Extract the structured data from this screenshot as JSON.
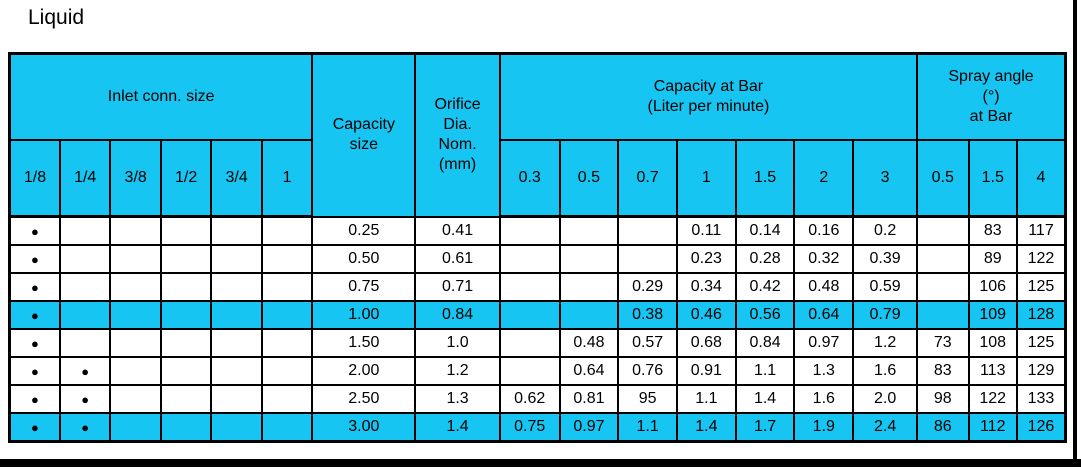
{
  "title": "Liquid",
  "colors": {
    "header_cyan": "#16c5f2",
    "highlight_cyan": "#16c5f2",
    "border_black": "#000000",
    "background": "#ffffff"
  },
  "table": {
    "inlet_group_label": "Inlet conn. size",
    "inlet_sizes": [
      "1/8",
      "1/4",
      "3/8",
      "1/2",
      "3/4",
      "1"
    ],
    "capacity_size_label": "Capacity\nsize",
    "orifice_label": "Orifice\nDia.\nNom.\n(mm)",
    "capacity_group_label": "Capacity at Bar\n(Liter per minute)",
    "capacity_bars": [
      "0.3",
      "0.5",
      "0.7",
      "1",
      "1.5",
      "2",
      "3"
    ],
    "spray_group_label": "Spray angle\n(°)\nat Bar",
    "spray_bars": [
      "0.5",
      "1.5",
      "4"
    ],
    "dot_glyph": "●",
    "rows": [
      {
        "highlight": false,
        "cells": [
          "●",
          "",
          "",
          "",
          "",
          "",
          "0.25",
          "0.41",
          "",
          "",
          "",
          "0.11",
          "0.14",
          "0.16",
          "0.2",
          "",
          "83",
          "117"
        ]
      },
      {
        "highlight": false,
        "cells": [
          "●",
          "",
          "",
          "",
          "",
          "",
          "0.50",
          "0.61",
          "",
          "",
          "",
          "0.23",
          "0.28",
          "0.32",
          "0.39",
          "",
          "89",
          "122"
        ]
      },
      {
        "highlight": false,
        "cells": [
          "●",
          "",
          "",
          "",
          "",
          "",
          "0.75",
          "0.71",
          "",
          "",
          "0.29",
          "0.34",
          "0.42",
          "0.48",
          "0.59",
          "",
          "106",
          "125"
        ]
      },
      {
        "highlight": true,
        "cells": [
          "●",
          "",
          "",
          "",
          "",
          "",
          "1.00",
          "0.84",
          "",
          "",
          "0.38",
          "0.46",
          "0.56",
          "0.64",
          "0.79",
          "",
          "109",
          "128"
        ]
      },
      {
        "highlight": false,
        "cells": [
          "●",
          "",
          "",
          "",
          "",
          "",
          "1.50",
          "1.0",
          "",
          "0.48",
          "0.57",
          "0.68",
          "0.84",
          "0.97",
          "1.2",
          "73",
          "108",
          "125"
        ]
      },
      {
        "highlight": false,
        "cells": [
          "●",
          "●",
          "",
          "",
          "",
          "",
          "2.00",
          "1.2",
          "",
          "0.64",
          "0.76",
          "0.91",
          "1.1",
          "1.3",
          "1.6",
          "83",
          "113",
          "129"
        ]
      },
      {
        "highlight": false,
        "cells": [
          "●",
          "●",
          "",
          "",
          "",
          "",
          "2.50",
          "1.3",
          "0.62",
          "0.81",
          "95",
          "1.1",
          "1.4",
          "1.6",
          "2.0",
          "98",
          "122",
          "133"
        ]
      },
      {
        "highlight": true,
        "cells": [
          "●",
          "●",
          "",
          "",
          "",
          "",
          "3.00",
          "1.4",
          "0.75",
          "0.97",
          "1.1",
          "1.4",
          "1.7",
          "1.9",
          "2.4",
          "86",
          "112",
          "126"
        ]
      }
    ]
  }
}
